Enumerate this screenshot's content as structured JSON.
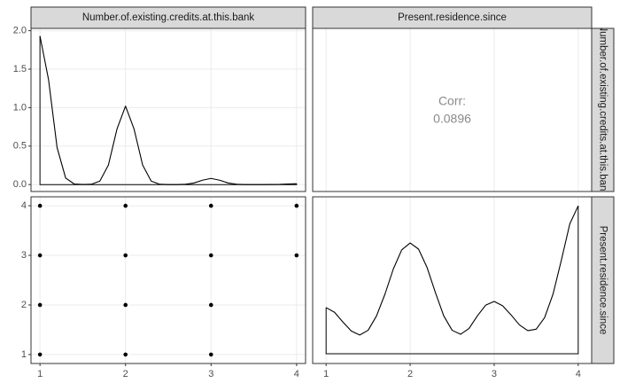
{
  "chart_data": [
    {
      "type": "density",
      "strip_top": "Number.of.existing.credits.at.this.bank",
      "x": [
        1.0,
        1.1,
        1.2,
        1.3,
        1.4,
        1.5,
        1.6,
        1.7,
        1.8,
        1.9,
        2.0,
        2.1,
        2.2,
        2.3,
        2.4,
        2.5,
        2.6,
        2.7,
        2.8,
        2.9,
        3.0,
        3.1,
        3.2,
        3.3,
        3.4,
        3.5,
        3.6,
        3.7,
        3.8,
        3.9,
        4.0
      ],
      "values": [
        1.93,
        1.365,
        0.481,
        0.085,
        0.008,
        0.001,
        0.004,
        0.045,
        0.254,
        0.721,
        1.02,
        0.721,
        0.254,
        0.045,
        0.004,
        0.0,
        0.0,
        0.004,
        0.02,
        0.057,
        0.08,
        0.057,
        0.02,
        0.004,
        0.0,
        0.0,
        0.0,
        0.001,
        0.003,
        0.008,
        0.012
      ],
      "color": "#000000",
      "xlim": [
        0.895,
        4.105
      ],
      "xticks": [
        1,
        2,
        3,
        4
      ],
      "ylim": [
        -0.09,
        2.03
      ],
      "yticks": [
        {
          "value": 0,
          "label": "0.0"
        },
        0.5,
        {
          "value": 1,
          "label": "1.0"
        },
        1.5,
        {
          "value": 2,
          "label": "2.0"
        }
      ],
      "grid": true
    },
    {
      "type": "corr",
      "strip_top": "Present.residence.since",
      "strip_right": "Number.of.existing.credits.at.this.bank",
      "label": "Corr:",
      "value": 0.0896,
      "xlim": [
        0.84,
        4.16
      ],
      "xticks": [
        1,
        2,
        3,
        4
      ],
      "grid": true
    },
    {
      "type": "scatter",
      "x": [
        1,
        1,
        1,
        1,
        2,
        2,
        2,
        2,
        3,
        3,
        3,
        3,
        4,
        4
      ],
      "y": [
        1,
        2,
        3,
        4,
        1,
        2,
        3,
        4,
        1,
        2,
        3,
        4,
        3,
        4
      ],
      "color": "#000000",
      "xlim": [
        0.895,
        4.105
      ],
      "xticks": [
        1,
        2,
        3,
        4
      ],
      "ylim": [
        0.82,
        4.18
      ],
      "yticks": [
        1,
        2,
        3,
        4
      ],
      "grid": true
    },
    {
      "type": "density",
      "strip_right": "Present.residence.since",
      "x": [
        1.0,
        1.1,
        1.2,
        1.3,
        1.4,
        1.5,
        1.6,
        1.7,
        1.8,
        1.9,
        2.0,
        2.1,
        2.2,
        2.3,
        2.4,
        2.5,
        2.6,
        2.7,
        2.8,
        2.9,
        3.0,
        3.1,
        3.2,
        3.3,
        3.4,
        3.5,
        3.6,
        3.7,
        3.8,
        3.9,
        4.0
      ],
      "values": [
        0.128,
        0.115,
        0.088,
        0.063,
        0.052,
        0.065,
        0.105,
        0.165,
        0.235,
        0.288,
        0.307,
        0.29,
        0.24,
        0.17,
        0.105,
        0.065,
        0.054,
        0.07,
        0.105,
        0.135,
        0.145,
        0.133,
        0.108,
        0.08,
        0.064,
        0.068,
        0.1,
        0.165,
        0.26,
        0.36,
        0.41
      ],
      "color": "#000000",
      "xlim": [
        0.84,
        4.16
      ],
      "xticks": [
        1,
        2,
        3,
        4
      ],
      "ylim": [
        -0.027,
        0.435
      ],
      "grid": true
    }
  ]
}
